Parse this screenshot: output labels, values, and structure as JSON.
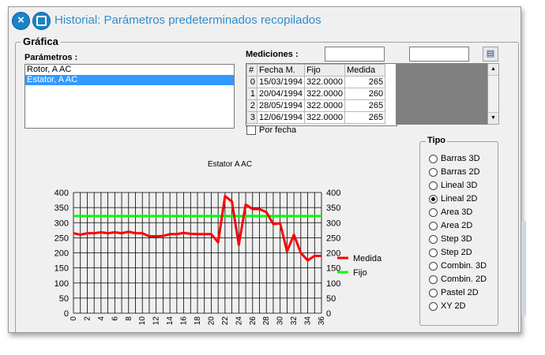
{
  "window": {
    "title": "Historial: Parámetros predeterminados recopilados"
  },
  "grafica_label": "Gráfica",
  "parametros": {
    "label": "Parámetros :",
    "items": [
      "Rotor, A AC",
      "Estator, A AC"
    ],
    "selected_index": 1
  },
  "mediciones": {
    "label": "Mediciones :",
    "input1_value": "",
    "input2_value": "",
    "columns": [
      "#",
      "Fecha M.",
      "Fijo",
      "Medida"
    ],
    "rows": [
      [
        "0",
        "15/03/1994",
        "322.0000",
        "265"
      ],
      [
        "1",
        "20/04/1994",
        "322.0000",
        "260"
      ],
      [
        "2",
        "28/05/1994",
        "322.0000",
        "265"
      ],
      [
        "3",
        "12/06/1994",
        "322.0000",
        "265"
      ]
    ],
    "por_fecha_label": "Por fecha",
    "por_fecha_checked": false
  },
  "tipo": {
    "label": "Tipo",
    "options": [
      "Barras 3D",
      "Barras 2D",
      "Lineal 3D",
      "Lineal 2D",
      "Area 3D",
      "Area 2D",
      "Step 3D",
      "Step 2D",
      "Combin. 3D",
      "Combin. 2D",
      "Pastel 2D",
      "XY 2D"
    ],
    "selected": "Lineal 2D"
  },
  "chart_data": {
    "type": "line",
    "title": "Estator  A  AC",
    "xlabel": "",
    "ylabel": "",
    "ylim": [
      0,
      400
    ],
    "yticks": [
      0,
      50,
      100,
      150,
      200,
      250,
      300,
      350,
      400
    ],
    "x": [
      0,
      1,
      2,
      3,
      4,
      5,
      6,
      7,
      8,
      9,
      10,
      11,
      12,
      13,
      14,
      15,
      16,
      17,
      18,
      19,
      20,
      21,
      22,
      23,
      24,
      25,
      26,
      27,
      28,
      29,
      30,
      31,
      32,
      33,
      34,
      35,
      36
    ],
    "xtick_labels": [
      "0",
      "2",
      "4",
      "6",
      "8",
      "10",
      "12",
      "14",
      "16",
      "18",
      "20",
      "22",
      "24",
      "26",
      "28",
      "30",
      "32",
      "34",
      "36"
    ],
    "grid": true,
    "legend_position": "right",
    "series": [
      {
        "name": "Medida",
        "color": "#ff0000",
        "values": [
          265,
          260,
          265,
          265,
          268,
          265,
          268,
          265,
          270,
          265,
          265,
          255,
          255,
          256,
          262,
          262,
          266,
          263,
          262,
          262,
          262,
          235,
          388,
          370,
          226,
          360,
          345,
          345,
          335,
          295,
          298,
          205,
          260,
          200,
          175,
          190,
          190
        ]
      },
      {
        "name": "Fijo",
        "color": "#00ff00",
        "values": [
          322,
          322,
          322,
          322,
          322,
          322,
          322,
          322,
          322,
          322,
          322,
          322,
          322,
          322,
          322,
          322,
          322,
          322,
          322,
          322,
          322,
          322,
          322,
          322,
          322,
          322,
          322,
          322,
          322,
          322,
          322,
          322,
          322,
          322,
          322,
          322,
          322
        ]
      }
    ]
  }
}
